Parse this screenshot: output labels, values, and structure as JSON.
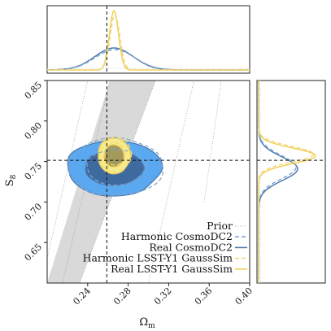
{
  "chart_data": {
    "type": "corner",
    "xlabel": "Ω_m",
    "ylabel": "S_8",
    "xlim": [
      0.2,
      0.4
    ],
    "ylim": [
      0.6,
      0.85
    ],
    "x_ticks": [
      "0.24",
      "0.28",
      "0.32",
      "0.36",
      "0.40"
    ],
    "x_tick_values": [
      0.24,
      0.28,
      0.32,
      0.36,
      0.4
    ],
    "y_ticks": [
      "0.65",
      "0.70",
      "0.75",
      "0.80",
      "0.85"
    ],
    "y_tick_values": [
      0.65,
      0.7,
      0.75,
      0.8,
      0.85
    ],
    "fiducial": {
      "omega_m": 0.2589,
      "s8": 0.7515
    },
    "legend": {
      "placement": "lower-right",
      "entries": [
        {
          "label": "Prior",
          "color": "#cfcfcf",
          "dash": "dotted"
        },
        {
          "label": "Harmonic CosmoDC2",
          "color": "#7fa6cc",
          "dash": "dashed"
        },
        {
          "label": "Real CosmoDC2",
          "color": "#4f7ab0",
          "dash": "solid"
        },
        {
          "label": "Harmonic LSST-Y1 GaussSim",
          "color": "#f2d97a",
          "dash": "dashed"
        },
        {
          "label": "Real LSST-Y1 GaussSim",
          "color": "#f0cf5a",
          "dash": "solid"
        }
      ]
    },
    "prior_band": {
      "color": "#d9d9d9",
      "edges": [
        {
          "s8_at_ylim_min": [
            0.2,
            0.232
          ],
          "s8_at_ylim_max": [
            0.262,
            0.307
          ]
        }
      ]
    },
    "series": [
      {
        "name": "Real CosmoDC2",
        "color": "#4f7ab0",
        "fill_outer": "#5aa8ef",
        "fill_inner": "#3f6a9f",
        "center": [
          0.266,
          0.742
        ],
        "sigma_x": 0.019,
        "sigma_y": 0.014,
        "marginal_omega_m": {
          "mean": 0.266,
          "sigma": 0.019
        },
        "marginal_s8": {
          "mean": 0.741,
          "sigma": 0.0145
        }
      },
      {
        "name": "Harmonic CosmoDC2",
        "color": "#7fa6cc",
        "center": [
          0.268,
          0.743
        ],
        "sigma_x": 0.019,
        "sigma_y": 0.0145,
        "marginal_omega_m": {
          "mean": 0.267,
          "sigma": 0.0195
        },
        "marginal_s8": {
          "mean": 0.743,
          "sigma": 0.0145
        }
      },
      {
        "name": "Real LSST-Y1 GaussSim",
        "color": "#f0cf5a",
        "fill_outer": "#f6ea8a",
        "fill_inner": "#a39a5c",
        "center": [
          0.266,
          0.757
        ],
        "sigma_x": 0.0065,
        "sigma_y": 0.009,
        "marginal_omega_m": {
          "mean": 0.266,
          "sigma": 0.0045
        },
        "marginal_s8": {
          "mean": 0.757,
          "sigma": 0.0095
        }
      },
      {
        "name": "Harmonic LSST-Y1 GaussSim",
        "color": "#f2d97a",
        "center": [
          0.267,
          0.759
        ],
        "sigma_x": 0.0065,
        "sigma_y": 0.009,
        "marginal_omega_m": {
          "mean": 0.267,
          "sigma": 0.0048
        },
        "marginal_s8": {
          "mean": 0.759,
          "sigma": 0.0095
        }
      }
    ]
  }
}
